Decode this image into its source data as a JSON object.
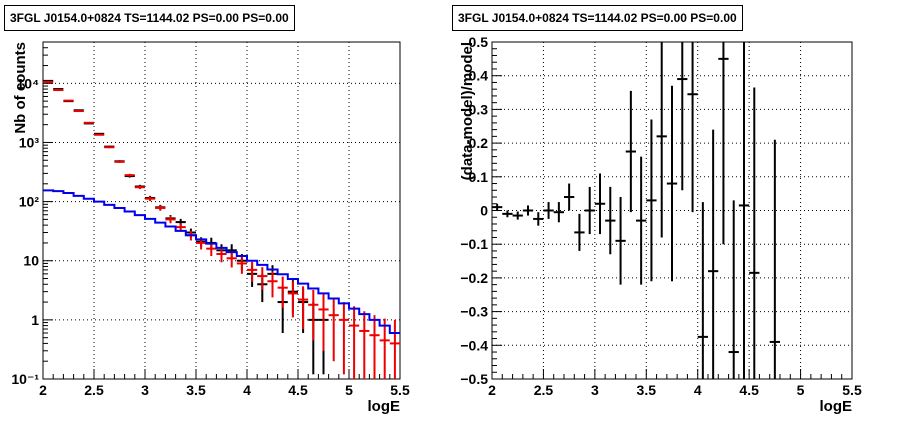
{
  "colors": {
    "data": "#000000",
    "model": "#ee0000",
    "component": "#0000ee",
    "grid": "#000000"
  },
  "chart_data": [
    {
      "type": "line",
      "title": "3FGL J0154.0+0824 TS=1144.02 PS=0.00 PS=0.00",
      "xlabel": "logE",
      "ylabel": "Nb of counts",
      "xlim": [
        2,
        5.5
      ],
      "ylim": [
        0.1,
        50000
      ],
      "yscale": "log",
      "grid": true,
      "xticks": [
        "2",
        "2.5",
        "3",
        "3.5",
        "4",
        "4.5",
        "5",
        "5.5"
      ],
      "yticks": [
        "10⁻¹",
        "1",
        "10",
        "10²",
        "10³",
        "10⁴"
      ],
      "series": [
        {
          "role": "data",
          "points": [
            {
              "x": 2.05,
              "y": 11000,
              "lo": 10800,
              "hi": 11200
            },
            {
              "x": 2.15,
              "y": 8000,
              "lo": 7850,
              "hi": 8150
            },
            {
              "x": 2.25,
              "y": 5000,
              "lo": 4900,
              "hi": 5100
            },
            {
              "x": 2.35,
              "y": 3500,
              "lo": 3420,
              "hi": 3580
            },
            {
              "x": 2.45,
              "y": 2100,
              "lo": 2050,
              "hi": 2150
            },
            {
              "x": 2.55,
              "y": 1400,
              "lo": 1360,
              "hi": 1440
            },
            {
              "x": 2.65,
              "y": 850,
              "lo": 820,
              "hi": 880
            },
            {
              "x": 2.75,
              "y": 480,
              "lo": 460,
              "hi": 500
            },
            {
              "x": 2.85,
              "y": 270,
              "lo": 255,
              "hi": 285
            },
            {
              "x": 2.95,
              "y": 180,
              "lo": 168,
              "hi": 192
            },
            {
              "x": 3.05,
              "y": 115,
              "lo": 105,
              "hi": 125
            },
            {
              "x": 3.15,
              "y": 80,
              "lo": 72,
              "hi": 88
            },
            {
              "x": 3.25,
              "y": 52,
              "lo": 45,
              "hi": 59
            },
            {
              "x": 3.35,
              "y": 45,
              "lo": 39,
              "hi": 51
            },
            {
              "x": 3.45,
              "y": 30,
              "lo": 25,
              "hi": 35
            },
            {
              "x": 3.55,
              "y": 21,
              "lo": 17,
              "hi": 25
            },
            {
              "x": 3.65,
              "y": 20,
              "lo": 15.5,
              "hi": 24.5
            },
            {
              "x": 3.75,
              "y": 15,
              "lo": 11,
              "hi": 19
            },
            {
              "x": 3.85,
              "y": 15,
              "lo": 11,
              "hi": 19
            },
            {
              "x": 3.95,
              "y": 10,
              "lo": 7,
              "hi": 13
            },
            {
              "x": 4.05,
              "y": 6,
              "lo": 3.6,
              "hi": 8.4
            },
            {
              "x": 4.15,
              "y": 4,
              "lo": 2,
              "hi": 6
            },
            {
              "x": 4.25,
              "y": 6,
              "lo": 3.6,
              "hi": 8.4
            },
            {
              "x": 4.35,
              "y": 2,
              "lo": 0.6,
              "hi": 3.4
            },
            {
              "x": 4.45,
              "y": 3,
              "lo": 1.3,
              "hi": 4.7
            },
            {
              "x": 4.55,
              "y": 2,
              "lo": 0.6,
              "hi": 3.4
            },
            {
              "x": 4.65,
              "y": 1,
              "lo": 0.12,
              "hi": 2.0
            },
            {
              "x": 4.75,
              "y": 1,
              "lo": 0.12,
              "hi": 2.0
            }
          ]
        },
        {
          "role": "model",
          "points": [
            {
              "x": 2.05,
              "y": 10500,
              "lo": 10300,
              "hi": 10700
            },
            {
              "x": 2.15,
              "y": 7700,
              "lo": 7550,
              "hi": 7850
            },
            {
              "x": 2.25,
              "y": 5100,
              "lo": 5000,
              "hi": 5200
            },
            {
              "x": 2.35,
              "y": 3400,
              "lo": 3320,
              "hi": 3480
            },
            {
              "x": 2.45,
              "y": 2150,
              "lo": 2100,
              "hi": 2200
            },
            {
              "x": 2.55,
              "y": 1350,
              "lo": 1310,
              "hi": 1390
            },
            {
              "x": 2.65,
              "y": 830,
              "lo": 800,
              "hi": 860
            },
            {
              "x": 2.75,
              "y": 470,
              "lo": 450,
              "hi": 490
            },
            {
              "x": 2.85,
              "y": 280,
              "lo": 265,
              "hi": 295
            },
            {
              "x": 2.95,
              "y": 175,
              "lo": 163,
              "hi": 187
            },
            {
              "x": 3.05,
              "y": 112,
              "lo": 102,
              "hi": 122
            },
            {
              "x": 3.15,
              "y": 78,
              "lo": 70,
              "hi": 86
            },
            {
              "x": 3.25,
              "y": 50,
              "lo": 43,
              "hi": 57
            },
            {
              "x": 3.35,
              "y": 37,
              "lo": 31,
              "hi": 43
            },
            {
              "x": 3.45,
              "y": 27,
              "lo": 22,
              "hi": 32
            },
            {
              "x": 3.55,
              "y": 20,
              "lo": 15.5,
              "hi": 24.5
            },
            {
              "x": 3.65,
              "y": 16,
              "lo": 12,
              "hi": 20
            },
            {
              "x": 3.75,
              "y": 13,
              "lo": 9.4,
              "hi": 16.6
            },
            {
              "x": 3.85,
              "y": 11,
              "lo": 7.7,
              "hi": 14.3
            },
            {
              "x": 3.95,
              "y": 9,
              "lo": 6,
              "hi": 12
            },
            {
              "x": 4.05,
              "y": 7,
              "lo": 4.4,
              "hi": 9.6
            },
            {
              "x": 4.15,
              "y": 5.5,
              "lo": 3.2,
              "hi": 7.8
            },
            {
              "x": 4.25,
              "y": 4.5,
              "lo": 2.4,
              "hi": 6.6
            },
            {
              "x": 4.35,
              "y": 3.5,
              "lo": 1.6,
              "hi": 5.4
            },
            {
              "x": 4.45,
              "y": 2.8,
              "lo": 1.1,
              "hi": 4.5
            },
            {
              "x": 4.55,
              "y": 2.2,
              "lo": 0.7,
              "hi": 3.7
            },
            {
              "x": 4.65,
              "y": 1.8,
              "lo": 0.45,
              "hi": 3.2
            },
            {
              "x": 4.75,
              "y": 1.5,
              "lo": 0.3,
              "hi": 2.8
            },
            {
              "x": 4.85,
              "y": 1.2,
              "lo": 0.2,
              "hi": 2.3
            },
            {
              "x": 4.95,
              "y": 1.0,
              "lo": 0.12,
              "hi": 2.0
            },
            {
              "x": 5.05,
              "y": 0.8,
              "lo": 0.1,
              "hi": 1.7
            },
            {
              "x": 5.15,
              "y": 0.65,
              "lo": 0.1,
              "hi": 1.4
            },
            {
              "x": 5.25,
              "y": 0.55,
              "lo": 0.1,
              "hi": 1.2
            },
            {
              "x": 5.35,
              "y": 0.45,
              "lo": 0.1,
              "hi": 1.05
            },
            {
              "x": 5.45,
              "y": 0.4,
              "lo": 0.1,
              "hi": 1.0
            }
          ]
        },
        {
          "role": "component",
          "step": true,
          "x": [
            2.0,
            2.1,
            2.2,
            2.3,
            2.4,
            2.5,
            2.6,
            2.7,
            2.8,
            2.9,
            3.0,
            3.1,
            3.2,
            3.3,
            3.4,
            3.5,
            3.6,
            3.7,
            3.8,
            3.9,
            4.0,
            4.1,
            4.2,
            4.3,
            4.4,
            4.5,
            4.6,
            4.7,
            4.8,
            4.9,
            5.0,
            5.1,
            5.2,
            5.3,
            5.4,
            5.5
          ],
          "y": [
            155,
            150,
            140,
            125,
            112,
            100,
            88,
            78,
            68,
            59,
            51,
            44,
            38,
            32,
            27,
            23,
            19.5,
            16.5,
            14,
            12,
            10,
            8.5,
            7.1,
            5.9,
            4.9,
            4.1,
            3.4,
            2.8,
            2.3,
            1.9,
            1.55,
            1.25,
            1.0,
            0.8,
            0.6,
            0.42
          ]
        }
      ]
    },
    {
      "type": "scatter",
      "title": "3FGL J0154.0+0824 TS=1144.02 PS=0.00 PS=0.00",
      "xlabel": "logE",
      "ylabel": "(data-model)/model",
      "xlim": [
        2,
        5.5
      ],
      "ylim": [
        -0.5,
        0.5
      ],
      "grid": true,
      "xticks": [
        "2",
        "2.5",
        "3",
        "3.5",
        "4",
        "4.5",
        "5",
        "5.5"
      ],
      "yticks": [
        "−0.5",
        "−0.4",
        "−0.3",
        "−0.2",
        "−0.1",
        "0",
        "0.1",
        "0.2",
        "0.3",
        "0.4",
        "0.5"
      ],
      "series": [
        {
          "role": "data",
          "points": [
            {
              "x": 2.05,
              "y": 0.01,
              "err": 0.01
            },
            {
              "x": 2.15,
              "y": -0.01,
              "err": 0.01
            },
            {
              "x": 2.25,
              "y": -0.015,
              "err": 0.012
            },
            {
              "x": 2.35,
              "y": 0.0,
              "err": 0.015
            },
            {
              "x": 2.45,
              "y": -0.025,
              "err": 0.02
            },
            {
              "x": 2.55,
              "y": 0.0,
              "err": 0.025
            },
            {
              "x": 2.65,
              "y": -0.005,
              "err": 0.03
            },
            {
              "x": 2.75,
              "y": 0.04,
              "err": 0.04
            },
            {
              "x": 2.85,
              "y": -0.065,
              "err": 0.055
            },
            {
              "x": 2.95,
              "y": 0.0,
              "err": 0.07
            },
            {
              "x": 3.05,
              "y": 0.02,
              "err": 0.09
            },
            {
              "x": 3.15,
              "y": -0.03,
              "err": 0.1
            },
            {
              "x": 3.25,
              "y": -0.09,
              "err": 0.13
            },
            {
              "x": 3.35,
              "y": 0.175,
              "err": 0.18
            },
            {
              "x": 3.45,
              "y": -0.03,
              "err": 0.19
            },
            {
              "x": 3.55,
              "y": 0.03,
              "err": 0.24
            },
            {
              "x": 3.65,
              "y": 0.22,
              "err": 0.3
            },
            {
              "x": 3.75,
              "y": 0.08,
              "err": 0.29
            },
            {
              "x": 3.85,
              "y": 0.39,
              "err": 0.33
            },
            {
              "x": 3.95,
              "y": 0.345,
              "err": 0.35
            },
            {
              "x": 4.05,
              "y": -0.375,
              "err": 0.4
            },
            {
              "x": 4.15,
              "y": -0.18,
              "err": 0.42
            },
            {
              "x": 4.25,
              "y": 0.45,
              "err": 0.55
            },
            {
              "x": 4.35,
              "y": -0.42,
              "err": 0.45
            },
            {
              "x": 4.45,
              "y": 0.015,
              "err": 0.6
            },
            {
              "x": 4.55,
              "y": -0.185,
              "err": 0.55
            },
            {
              "x": 4.75,
              "y": -0.39,
              "err": 0.6
            }
          ]
        }
      ]
    }
  ]
}
